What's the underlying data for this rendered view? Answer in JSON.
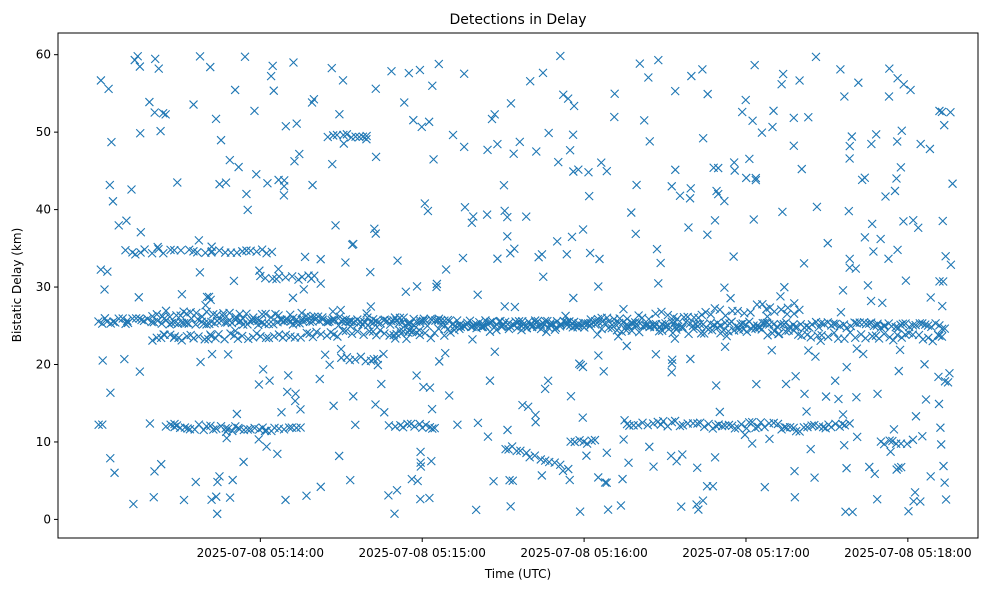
{
  "chart_data": {
    "type": "scatter",
    "title": "Detections in Delay",
    "xlabel": "Time (UTC)",
    "ylabel": "Bistatic Delay (km)",
    "x_ticks": [
      "2025-07-08 05:14:00",
      "2025-07-08 05:15:00",
      "2025-07-08 05:16:00",
      "2025-07-08 05:17:00",
      "2025-07-08 05:18:00"
    ],
    "x_tick_seconds": [
      60,
      120,
      180,
      240,
      300
    ],
    "xlim_seconds": [
      -15,
      326
    ],
    "y_ticks": [
      0,
      10,
      20,
      30,
      40,
      50,
      60
    ],
    "ylim": [
      -2.4,
      62.8
    ],
    "marker": "x",
    "color": "#1f77b4",
    "grid": false,
    "bands": [
      {
        "t0": 0,
        "t1": 315,
        "y0": 25.6,
        "y1": 25.0,
        "density": 0.85,
        "jitter": 0.4
      },
      {
        "t0": 20,
        "t1": 315,
        "y0": 26.6,
        "y1": 23.4,
        "density": 0.55,
        "jitter": 0.5
      },
      {
        "t0": 20,
        "t1": 120,
        "y0": 23.4,
        "y1": 24.2,
        "density": 0.6,
        "jitter": 0.4
      },
      {
        "t0": 110,
        "t1": 260,
        "y0": 23.6,
        "y1": 27.6,
        "density": 0.5,
        "jitter": 0.6
      },
      {
        "t0": 25,
        "t1": 75,
        "y0": 12.0,
        "y1": 11.6,
        "density": 0.7,
        "jitter": 0.4
      },
      {
        "t0": 110,
        "t1": 125,
        "y0": 12.2,
        "y1": 12.0,
        "density": 0.7,
        "jitter": 0.3
      },
      {
        "t0": 195,
        "t1": 255,
        "y0": 12.4,
        "y1": 12.0,
        "density": 0.7,
        "jitter": 0.5
      },
      {
        "t0": 255,
        "t1": 280,
        "y0": 11.6,
        "y1": 12.2,
        "density": 0.7,
        "jitter": 0.4
      },
      {
        "t0": 10,
        "t1": 65,
        "y0": 34.6,
        "y1": 34.6,
        "density": 0.45,
        "jitter": 0.3
      },
      {
        "t0": 60,
        "t1": 80,
        "y0": 31.2,
        "y1": 31.2,
        "density": 0.5,
        "jitter": 0.3
      },
      {
        "t0": 90,
        "t1": 105,
        "y0": 20.8,
        "y1": 20.6,
        "density": 0.6,
        "jitter": 0.3
      },
      {
        "t0": 85,
        "t1": 100,
        "y0": 49.6,
        "y1": 49.6,
        "density": 0.5,
        "jitter": 0.3
      },
      {
        "t0": 152,
        "t1": 175,
        "y0": 9.4,
        "y1": 6.2,
        "density": 0.6,
        "jitter": 0.4
      },
      {
        "t0": 175,
        "t1": 185,
        "y0": 10.0,
        "y1": 10.0,
        "density": 0.6,
        "jitter": 0.3
      },
      {
        "t0": 290,
        "t1": 302,
        "y0": 10.0,
        "y1": 10.0,
        "density": 0.6,
        "jitter": 0.3
      }
    ],
    "scatter_count": 520
  }
}
